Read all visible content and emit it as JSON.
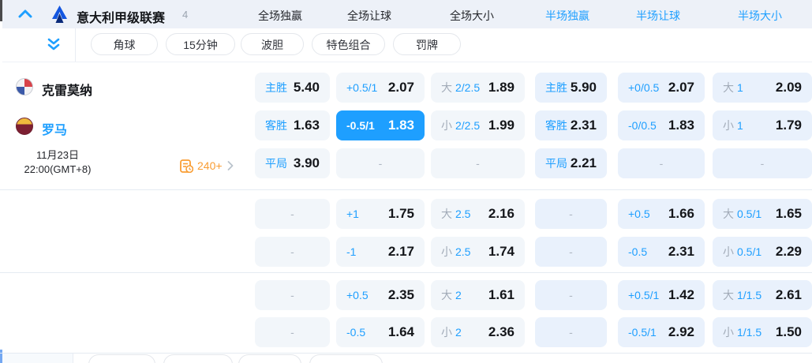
{
  "header": {
    "league": "意大利甲级联赛",
    "count": "4",
    "tabs": [
      {
        "label": "全场独赢",
        "active": false
      },
      {
        "label": "全场让球",
        "active": false
      },
      {
        "label": "全场大小",
        "active": false
      },
      {
        "label": "半场独赢",
        "active": true
      },
      {
        "label": "半场让球",
        "active": true
      },
      {
        "label": "半场大小",
        "active": true
      }
    ]
  },
  "filters": [
    "角球",
    "15分钟",
    "波胆",
    "特色组合",
    "罚牌"
  ],
  "match": {
    "home_team": "克雷莫纳",
    "away_team": "罗马",
    "date": "11月23日",
    "time": "22:00(GMT+8)",
    "more_markets_count": "240+"
  },
  "colors": {
    "accent_blue": "#1e9fff",
    "cell_light": "#f2f6fa",
    "cell_blue": "#e9f1fc",
    "markets_orange": "#f99d33"
  },
  "odds": {
    "rows": [
      [
        {
          "label": "主胜",
          "value": "5.40"
        },
        {
          "label": "+0.5/1",
          "value": "2.07"
        },
        {
          "prefix": "大",
          "label": "2/2.5",
          "value": "1.89"
        },
        {
          "label": "主胜",
          "value": "5.90"
        },
        {
          "label": "+0/0.5",
          "value": "2.07"
        },
        {
          "prefix": "大",
          "label": "1",
          "value": "2.09"
        }
      ],
      [
        {
          "label": "客胜",
          "value": "1.63"
        },
        {
          "label": "-0.5/1",
          "value": "1.83",
          "selected": true
        },
        {
          "prefix": "小",
          "label": "2/2.5",
          "value": "1.99"
        },
        {
          "label": "客胜",
          "value": "2.31"
        },
        {
          "label": "-0/0.5",
          "value": "1.83"
        },
        {
          "prefix": "小",
          "label": "1",
          "value": "1.79"
        }
      ],
      [
        {
          "label": "平局",
          "value": "3.90"
        },
        {
          "dash": true
        },
        {
          "dash": true
        },
        {
          "label": "平局",
          "value": "2.21"
        },
        {
          "dash": true
        },
        {
          "dash": true
        }
      ],
      [
        {
          "dash": true
        },
        {
          "label": "+1",
          "value": "1.75"
        },
        {
          "prefix": "大",
          "label": "2.5",
          "value": "2.16"
        },
        {
          "dash": true
        },
        {
          "label": "+0.5",
          "value": "1.66"
        },
        {
          "prefix": "大",
          "label": "0.5/1",
          "value": "1.65"
        }
      ],
      [
        {
          "dash": true
        },
        {
          "label": "-1",
          "value": "2.17"
        },
        {
          "prefix": "小",
          "label": "2.5",
          "value": "1.74"
        },
        {
          "dash": true
        },
        {
          "label": "-0.5",
          "value": "2.31"
        },
        {
          "prefix": "小",
          "label": "0.5/1",
          "value": "2.29"
        }
      ],
      [
        {
          "dash": true
        },
        {
          "label": "+0.5",
          "value": "2.35"
        },
        {
          "prefix": "大",
          "label": "2",
          "value": "1.61"
        },
        {
          "dash": true
        },
        {
          "label": "+0.5/1",
          "value": "1.42"
        },
        {
          "prefix": "大",
          "label": "1/1.5",
          "value": "2.61"
        }
      ],
      [
        {
          "dash": true
        },
        {
          "label": "-0.5",
          "value": "1.64"
        },
        {
          "prefix": "小",
          "label": "2",
          "value": "2.36"
        },
        {
          "dash": true
        },
        {
          "label": "-0.5/1",
          "value": "2.92"
        },
        {
          "prefix": "小",
          "label": "1/1.5",
          "value": "1.50"
        }
      ]
    ]
  }
}
